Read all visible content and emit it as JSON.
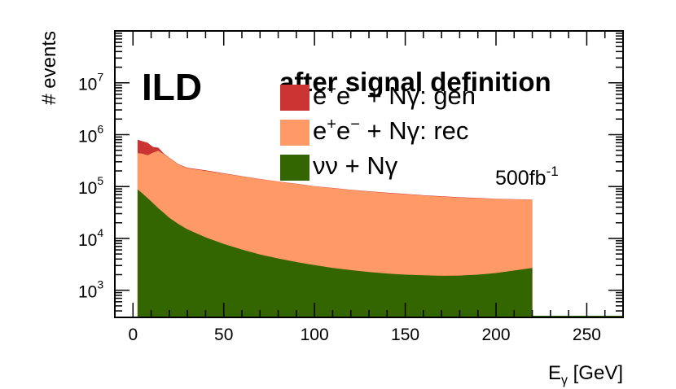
{
  "chart_data": {
    "type": "area",
    "experiment_label": "ILD",
    "luminosity_label": "500fb",
    "luminosity_exponent": "-1",
    "legend_title": "after signal definition",
    "xlabel_main": "E",
    "xlabel_sub": "γ",
    "xlabel_unit": " [GeV]",
    "ylabel": "# events",
    "xlim": [
      -10,
      270
    ],
    "ylim": [
      300,
      100000000
    ],
    "yscale": "log",
    "x_ticks": [
      "0",
      "50",
      "100",
      "150",
      "200",
      "250"
    ],
    "y_ticks": [
      {
        "base": "10",
        "exp": "3"
      },
      {
        "base": "10",
        "exp": "4"
      },
      {
        "base": "10",
        "exp": "5"
      },
      {
        "base": "10",
        "exp": "6"
      },
      {
        "base": "10",
        "exp": "7"
      }
    ],
    "x": [
      2.5,
      5,
      8,
      11,
      14,
      17,
      20,
      25,
      30,
      40,
      50,
      60,
      70,
      80,
      90,
      100,
      110,
      120,
      130,
      140,
      150,
      160,
      170,
      180,
      190,
      200,
      210,
      220
    ],
    "series": [
      {
        "name": "e⁺e⁻ + Nγ:  gen",
        "legend_main": "e",
        "legend_sup1": "+",
        "legend_mid": "e",
        "legend_sup2": "−",
        "legend_tail": " + Nγ:  gen",
        "color": "#cc3333",
        "values": [
          800000,
          750000,
          700000,
          580000,
          560000,
          430000,
          360000,
          270000,
          230000,
          205000,
          180000,
          158000,
          140000,
          125000,
          113000,
          102000,
          94000,
          87000,
          81000,
          76000,
          72000,
          68000,
          65000,
          62000,
          60000,
          58000,
          57000,
          56000
        ]
      },
      {
        "name": "e⁺e⁻ + Nγ: rec",
        "legend_main": "e",
        "legend_sup1": "+",
        "legend_mid": "e",
        "legend_sup2": "−",
        "legend_tail": " + Nγ: rec",
        "color": "#ff9966",
        "values": [
          440000,
          430000,
          400000,
          450000,
          490000,
          420000,
          355000,
          265000,
          225000,
          200000,
          177000,
          156000,
          139000,
          124000,
          112000,
          101000,
          93000,
          86000,
          80000,
          75000,
          71000,
          67000,
          64000,
          61000,
          59000,
          57500,
          56500,
          55500
        ]
      },
      {
        "name": "νν + Nγ",
        "legend_main": "νν + Nγ",
        "color": "#336600",
        "values": [
          88000,
          75000,
          60000,
          48000,
          38000,
          31000,
          25000,
          19000,
          15000,
          10500,
          7800,
          6100,
          4900,
          4100,
          3500,
          3050,
          2700,
          2450,
          2250,
          2100,
          2000,
          1950,
          1900,
          1920,
          2000,
          2150,
          2400,
          2700
        ]
      }
    ]
  }
}
